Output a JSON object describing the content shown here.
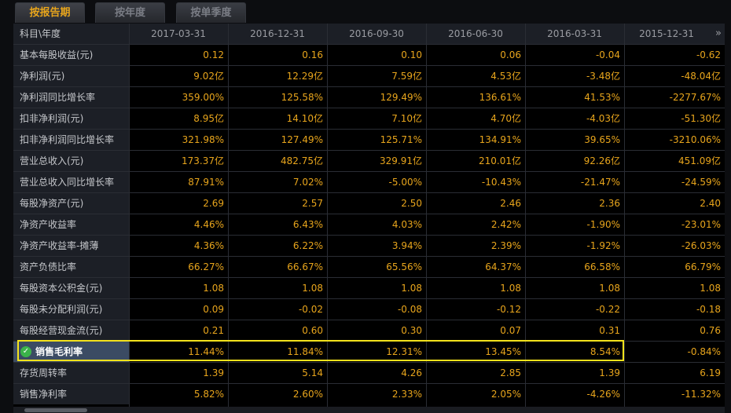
{
  "tabs": [
    {
      "label": "按报告期",
      "active": true
    },
    {
      "label": "按年度",
      "active": false
    },
    {
      "label": "按单季度",
      "active": false
    }
  ],
  "header": {
    "label": "科目\\年度",
    "periods": [
      "2017-03-31",
      "2016-12-31",
      "2016-09-30",
      "2016-06-30",
      "2016-03-31",
      "2015-12-31"
    ],
    "more_icon": "»"
  },
  "rows": [
    {
      "label": "基本每股收益(元)",
      "values": [
        "0.12",
        "0.16",
        "0.10",
        "0.06",
        "-0.04",
        "-0.62"
      ]
    },
    {
      "label": "净利润(元)",
      "values": [
        "9.02亿",
        "12.29亿",
        "7.59亿",
        "4.53亿",
        "-3.48亿",
        "-48.04亿"
      ]
    },
    {
      "label": "净利润同比增长率",
      "values": [
        "359.00%",
        "125.58%",
        "129.49%",
        "136.61%",
        "41.53%",
        "-2277.67%"
      ]
    },
    {
      "label": "扣非净利润(元)",
      "values": [
        "8.95亿",
        "14.10亿",
        "7.10亿",
        "4.70亿",
        "-4.03亿",
        "-51.30亿"
      ]
    },
    {
      "label": "扣非净利润同比增长率",
      "values": [
        "321.98%",
        "127.49%",
        "125.71%",
        "134.91%",
        "39.65%",
        "-3210.06%"
      ]
    },
    {
      "label": "营业总收入(元)",
      "values": [
        "173.37亿",
        "482.75亿",
        "329.91亿",
        "210.01亿",
        "92.26亿",
        "451.09亿"
      ]
    },
    {
      "label": "营业总收入同比增长率",
      "values": [
        "87.91%",
        "7.02%",
        "-5.00%",
        "-10.43%",
        "-21.47%",
        "-24.59%"
      ]
    },
    {
      "label": "每股净资产(元)",
      "values": [
        "2.69",
        "2.57",
        "2.50",
        "2.46",
        "2.36",
        "2.40"
      ]
    },
    {
      "label": "净资产收益率",
      "values": [
        "4.46%",
        "6.43%",
        "4.03%",
        "2.42%",
        "-1.90%",
        "-23.01%"
      ]
    },
    {
      "label": "净资产收益率-摊薄",
      "values": [
        "4.36%",
        "6.22%",
        "3.94%",
        "2.39%",
        "-1.92%",
        "-26.03%"
      ]
    },
    {
      "label": "资产负债比率",
      "values": [
        "66.27%",
        "66.67%",
        "65.56%",
        "64.37%",
        "66.58%",
        "66.79%"
      ]
    },
    {
      "label": "每股资本公积金(元)",
      "values": [
        "1.08",
        "1.08",
        "1.08",
        "1.08",
        "1.08",
        "1.08"
      ]
    },
    {
      "label": "每股未分配利润(元)",
      "values": [
        "0.09",
        "-0.02",
        "-0.08",
        "-0.12",
        "-0.22",
        "-0.18"
      ]
    },
    {
      "label": "每股经营现金流(元)",
      "values": [
        "0.21",
        "0.60",
        "0.30",
        "0.07",
        "0.31",
        "0.76"
      ]
    },
    {
      "label": "销售毛利率",
      "values": [
        "11.44%",
        "11.84%",
        "12.31%",
        "13.45%",
        "8.54%",
        "-0.84%"
      ],
      "highlighted": true
    },
    {
      "label": "存货周转率",
      "values": [
        "1.39",
        "5.14",
        "4.26",
        "2.85",
        "1.39",
        "6.19"
      ]
    },
    {
      "label": "销售净利率",
      "values": [
        "5.82%",
        "2.60%",
        "2.33%",
        "2.05%",
        "-4.26%",
        "-11.32%"
      ]
    }
  ],
  "colors": {
    "value_text": "#e8a51c",
    "label_bg": "#1c1f26",
    "highlight_box": "#f3e21c",
    "highlight_label_bg": "#3b4b63",
    "check": "#3bb34a"
  },
  "icons": {
    "check": "check-circle-icon",
    "more": "double-chevron-right-icon"
  }
}
